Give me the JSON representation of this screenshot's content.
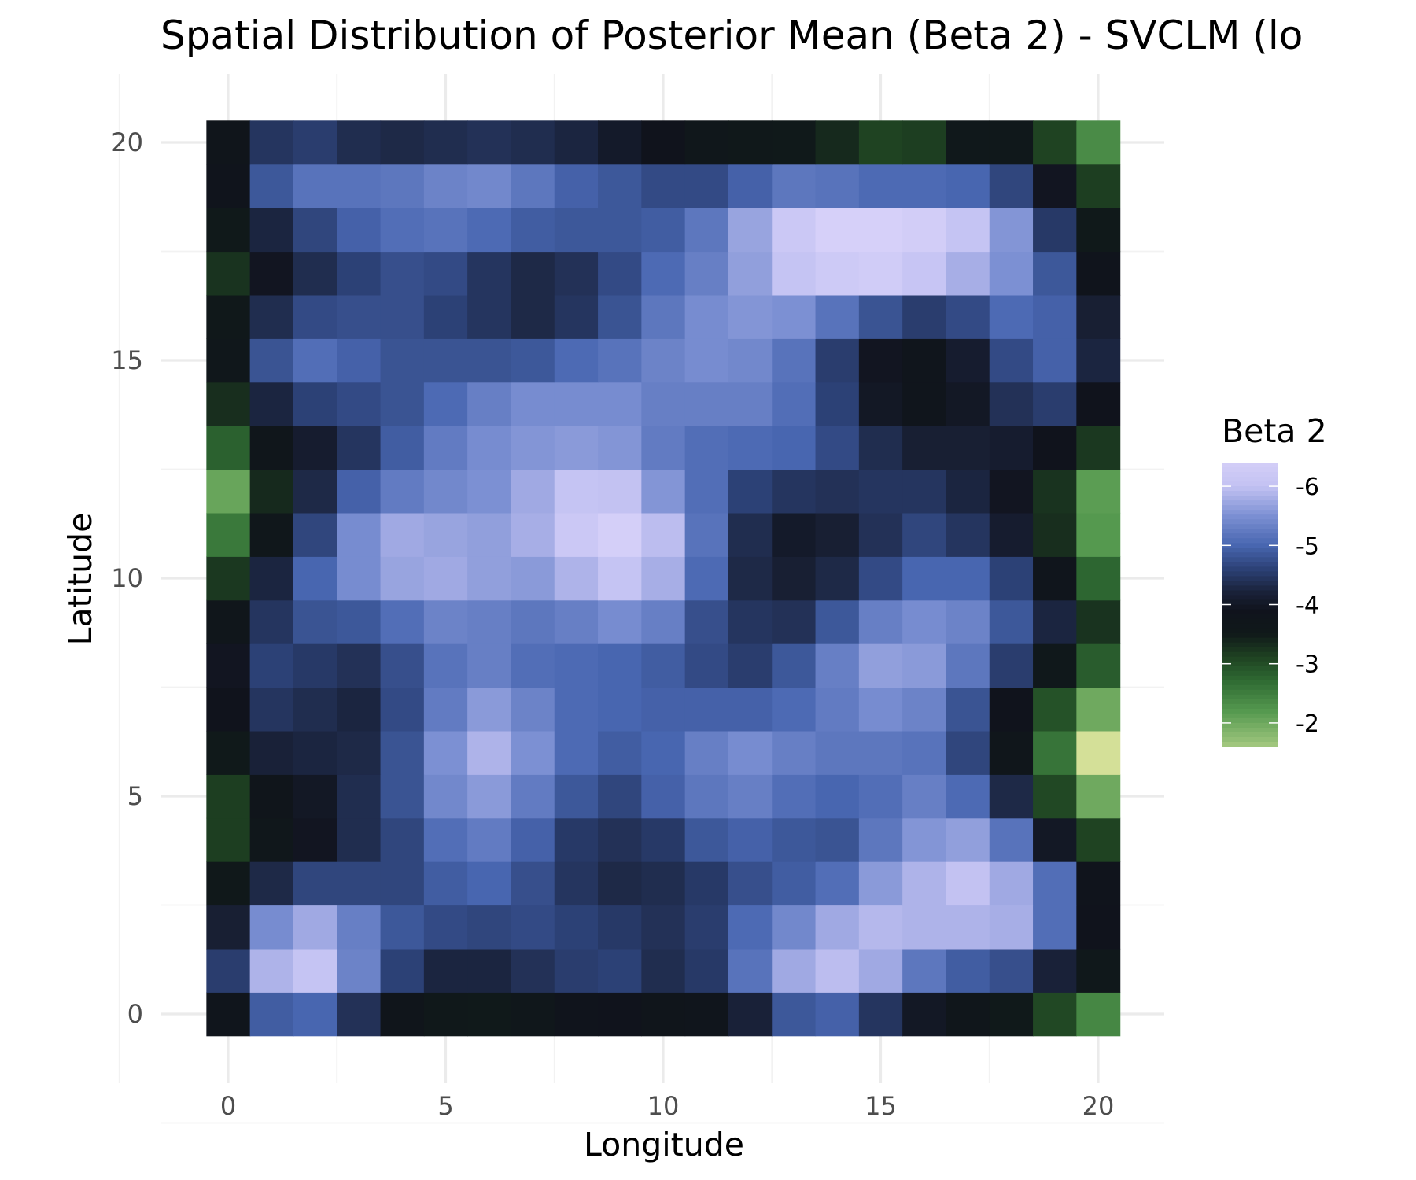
{
  "chart_data": {
    "type": "heatmap",
    "title": "Spatial Distribution of Posterior Mean (Beta 2) - SVCLM (lo",
    "xlabel": "Longitude",
    "ylabel": "Latitude",
    "x_ticks": [
      "0",
      "5",
      "10",
      "15",
      "20"
    ],
    "y_ticks": [
      "0",
      "5",
      "10",
      "15",
      "20"
    ],
    "x": [
      0,
      1,
      2,
      3,
      4,
      5,
      6,
      7,
      8,
      9,
      10,
      11,
      12,
      13,
      14,
      15,
      16,
      17,
      18,
      19,
      20
    ],
    "y": [
      0,
      1,
      2,
      3,
      4,
      5,
      6,
      7,
      8,
      9,
      10,
      11,
      12,
      13,
      14,
      15,
      16,
      17,
      18,
      19,
      20
    ],
    "xlim": [
      -0.5,
      20.5
    ],
    "ylim": [
      -0.5,
      20.5
    ],
    "grid": true,
    "legend": {
      "title": "Beta 2",
      "position": "right",
      "labels": [
        "-6",
        "-5",
        "-4",
        "-3",
        "-2"
      ],
      "values": [
        -6,
        -5,
        -4,
        -3,
        -2
      ]
    },
    "colors": {
      "low": "#d4cdf7",
      "mid_blue": "#4866b0",
      "dark": "#10141f",
      "green": "#2b5e30",
      "light_green": "#dbe59a"
    },
    "values_by_row_from_bottom": [
      [
        -3.8,
        -4.9,
        -5.0,
        -4.4,
        -3.75,
        -3.55,
        -3.5,
        -3.65,
        -3.85,
        -3.9,
        -3.75,
        -3.8,
        -4.2,
        -4.85,
        -4.95,
        -4.45,
        -4.0,
        -3.7,
        -3.5,
        -3.05,
        -2.4
      ],
      [
        -4.55,
        -5.85,
        -6.05,
        -5.35,
        -4.6,
        -4.25,
        -4.25,
        -4.4,
        -4.55,
        -4.6,
        -4.35,
        -4.5,
        -5.15,
        -5.75,
        -5.95,
        -5.75,
        -5.2,
        -4.9,
        -4.75,
        -4.2,
        -3.6
      ],
      [
        -4.15,
        -5.45,
        -5.75,
        -5.3,
        -4.85,
        -4.7,
        -4.65,
        -4.7,
        -4.6,
        -4.5,
        -4.4,
        -4.55,
        -5.05,
        -5.4,
        -5.75,
        -5.9,
        -5.85,
        -5.85,
        -5.8,
        -5.1,
        -3.9
      ],
      [
        -3.55,
        -4.3,
        -4.65,
        -4.65,
        -4.65,
        -4.9,
        -5.0,
        -4.75,
        -4.45,
        -4.3,
        -4.35,
        -4.5,
        -4.75,
        -4.9,
        -5.1,
        -5.6,
        -5.85,
        -6.0,
        -5.75,
        -5.1,
        -3.85
      ],
      [
        -3.15,
        -3.65,
        -3.95,
        -4.35,
        -4.65,
        -5.1,
        -5.25,
        -4.95,
        -4.5,
        -4.4,
        -4.5,
        -4.85,
        -4.95,
        -4.85,
        -4.8,
        -5.2,
        -5.55,
        -5.65,
        -5.15,
        -4.0,
        -3.1
      ],
      [
        -3.15,
        -3.75,
        -4.0,
        -4.35,
        -4.8,
        -5.4,
        -5.6,
        -5.25,
        -4.85,
        -4.65,
        -4.95,
        -5.2,
        -5.3,
        -5.1,
        -5.0,
        -5.1,
        -5.3,
        -5.05,
        -4.3,
        -3.05,
        -2.0
      ],
      [
        -3.5,
        -4.2,
        -4.25,
        -4.3,
        -4.8,
        -5.5,
        -5.85,
        -5.5,
        -5.05,
        -4.9,
        -5.0,
        -5.3,
        -5.45,
        -5.3,
        -5.2,
        -5.2,
        -5.15,
        -4.65,
        -3.7,
        -2.6,
        -1.35
      ],
      [
        -3.9,
        -4.45,
        -4.35,
        -4.25,
        -4.7,
        -5.25,
        -5.6,
        -5.35,
        -5.05,
        -5.0,
        -4.95,
        -4.95,
        -4.95,
        -5.05,
        -5.25,
        -5.45,
        -5.35,
        -4.8,
        -3.9,
        -2.95,
        -2.0
      ],
      [
        -3.95,
        -4.6,
        -4.5,
        -4.4,
        -4.75,
        -5.15,
        -5.3,
        -5.1,
        -5.05,
        -5.0,
        -4.9,
        -4.7,
        -4.55,
        -4.85,
        -5.3,
        -5.65,
        -5.6,
        -5.2,
        -4.55,
        -3.6,
        -2.85
      ],
      [
        -3.7,
        -4.45,
        -4.8,
        -4.85,
        -5.1,
        -5.35,
        -5.3,
        -5.2,
        -5.3,
        -5.45,
        -5.3,
        -4.75,
        -4.45,
        -4.4,
        -4.85,
        -5.3,
        -5.45,
        -5.35,
        -4.85,
        -4.25,
        -3.25
      ],
      [
        -3.2,
        -4.25,
        -5.0,
        -5.45,
        -5.7,
        -5.75,
        -5.65,
        -5.6,
        -5.85,
        -6.05,
        -5.8,
        -5.05,
        -4.3,
        -4.15,
        -4.3,
        -4.7,
        -5.0,
        -5.0,
        -4.6,
        -3.8,
        -2.75
      ],
      [
        -2.55,
        -3.65,
        -4.65,
        -5.45,
        -5.75,
        -5.7,
        -5.65,
        -5.8,
        -6.2,
        -6.4,
        -5.95,
        -5.15,
        -4.35,
        -4.05,
        -4.15,
        -4.4,
        -4.65,
        -4.45,
        -4.1,
        -3.3,
        -2.2
      ],
      [
        -2.05,
        -3.35,
        -4.3,
        -4.95,
        -5.25,
        -5.4,
        -5.5,
        -5.75,
        -6.05,
        -6.0,
        -5.55,
        -5.1,
        -4.6,
        -4.45,
        -4.4,
        -4.45,
        -4.45,
        -4.25,
        -3.95,
        -3.25,
        -2.15
      ],
      [
        -2.8,
        -3.7,
        -4.1,
        -4.45,
        -4.9,
        -5.25,
        -5.45,
        -5.55,
        -5.6,
        -5.55,
        -5.25,
        -5.1,
        -5.05,
        -5.0,
        -4.7,
        -4.35,
        -4.15,
        -4.15,
        -4.1,
        -3.9,
        -3.2
      ],
      [
        -3.3,
        -4.25,
        -4.6,
        -4.7,
        -4.8,
        -5.05,
        -5.3,
        -5.45,
        -5.45,
        -5.45,
        -5.3,
        -5.3,
        -5.3,
        -5.1,
        -4.6,
        -4.0,
        -3.8,
        -4.0,
        -4.4,
        -4.55,
        -3.9
      ],
      [
        -3.65,
        -4.8,
        -5.1,
        -4.95,
        -4.8,
        -4.8,
        -4.8,
        -4.85,
        -5.05,
        -5.15,
        -5.35,
        -5.45,
        -5.4,
        -5.15,
        -4.55,
        -3.95,
        -3.8,
        -4.1,
        -4.7,
        -4.95,
        -4.25
      ],
      [
        -3.55,
        -4.35,
        -4.7,
        -4.75,
        -4.75,
        -4.6,
        -4.45,
        -4.3,
        -4.45,
        -4.8,
        -5.2,
        -5.45,
        -5.55,
        -5.5,
        -5.15,
        -4.8,
        -4.55,
        -4.7,
        -5.05,
        -4.95,
        -4.15
      ],
      [
        -3.25,
        -3.95,
        -4.35,
        -4.6,
        -4.75,
        -4.7,
        -4.45,
        -4.3,
        -4.4,
        -4.7,
        -5.05,
        -5.3,
        -5.65,
        -6.05,
        -6.25,
        -6.3,
        -6.1,
        -5.8,
        -5.5,
        -4.85,
        -3.85
      ],
      [
        -3.5,
        -4.25,
        -4.65,
        -4.95,
        -5.1,
        -5.15,
        -5.05,
        -4.9,
        -4.85,
        -4.85,
        -4.9,
        -5.2,
        -5.7,
        -6.2,
        -6.45,
        -6.45,
        -6.35,
        -6.05,
        -5.55,
        -4.5,
        -3.5
      ],
      [
        -3.85,
        -4.85,
        -5.15,
        -5.15,
        -5.2,
        -5.35,
        -5.4,
        -5.2,
        -4.95,
        -4.85,
        -4.7,
        -4.7,
        -4.95,
        -5.2,
        -5.15,
        -5.05,
        -5.05,
        -5.0,
        -4.65,
        -3.95,
        -3.15
      ],
      [
        -3.75,
        -4.45,
        -4.55,
        -4.35,
        -4.3,
        -4.35,
        -4.4,
        -4.35,
        -4.25,
        -4.05,
        -3.9,
        -3.65,
        -3.55,
        -3.5,
        -3.35,
        -3.1,
        -3.15,
        -3.6,
        -3.6,
        -3.1,
        -2.35
      ]
    ]
  }
}
